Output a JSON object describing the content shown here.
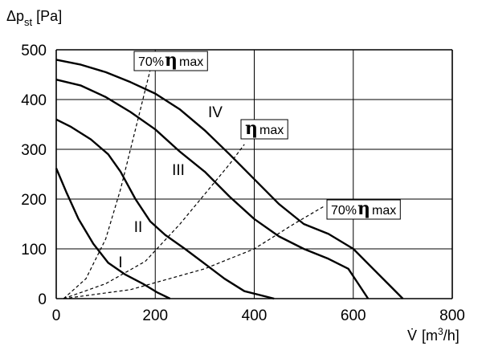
{
  "chart_data": {
    "type": "line",
    "title": "",
    "ylabel_prefix": "Δp",
    "ylabel_sub": "st",
    "ylabel_unit": "[Pa]",
    "xlabel_sym": "V̇",
    "xlabel_unit_pre": "[m",
    "xlabel_unit_sup": "3",
    "xlabel_unit_post": "/h]",
    "xlim": [
      0,
      800
    ],
    "ylim": [
      0,
      500
    ],
    "x_ticks": [
      0,
      200,
      400,
      600,
      800
    ],
    "y_ticks": [
      0,
      100,
      200,
      300,
      400,
      500
    ],
    "grid": true,
    "series": [
      {
        "name": "I",
        "points": [
          [
            0,
            262
          ],
          [
            20,
            215
          ],
          [
            45,
            160
          ],
          [
            75,
            110
          ],
          [
            105,
            72
          ],
          [
            140,
            48
          ],
          [
            175,
            30
          ],
          [
            205,
            12
          ],
          [
            230,
            0
          ]
        ]
      },
      {
        "name": "II",
        "points": [
          [
            0,
            360
          ],
          [
            30,
            345
          ],
          [
            70,
            320
          ],
          [
            105,
            290
          ],
          [
            130,
            255
          ],
          [
            160,
            200
          ],
          [
            190,
            155
          ],
          [
            220,
            128
          ],
          [
            260,
            100
          ],
          [
            300,
            70
          ],
          [
            340,
            40
          ],
          [
            380,
            15
          ],
          [
            440,
            0
          ]
        ]
      },
      {
        "name": "III",
        "points": [
          [
            0,
            440
          ],
          [
            50,
            428
          ],
          [
            100,
            405
          ],
          [
            150,
            375
          ],
          [
            200,
            340
          ],
          [
            250,
            295
          ],
          [
            300,
            255
          ],
          [
            350,
            205
          ],
          [
            400,
            160
          ],
          [
            450,
            125
          ],
          [
            500,
            100
          ],
          [
            550,
            80
          ],
          [
            590,
            60
          ],
          [
            610,
            30
          ],
          [
            630,
            0
          ]
        ]
      },
      {
        "name": "IV",
        "points": [
          [
            0,
            480
          ],
          [
            50,
            470
          ],
          [
            100,
            455
          ],
          [
            150,
            435
          ],
          [
            200,
            412
          ],
          [
            250,
            380
          ],
          [
            300,
            338
          ],
          [
            350,
            290
          ],
          [
            400,
            240
          ],
          [
            450,
            190
          ],
          [
            500,
            150
          ],
          [
            550,
            130
          ],
          [
            600,
            100
          ],
          [
            640,
            60
          ],
          [
            670,
            30
          ],
          [
            700,
            0
          ]
        ]
      }
    ],
    "efficiency_lines": [
      {
        "label_sym": "η",
        "label_text": "max",
        "label_prefix": "70%",
        "points": [
          [
            15,
            0
          ],
          [
            60,
            40
          ],
          [
            100,
            120
          ],
          [
            130,
            220
          ],
          [
            160,
            340
          ],
          [
            180,
            420
          ],
          [
            195,
            480
          ]
        ]
      },
      {
        "label_sym": "η",
        "label_text": "max",
        "label_prefix": "",
        "points": [
          [
            15,
            0
          ],
          [
            100,
            30
          ],
          [
            180,
            75
          ],
          [
            250,
            150
          ],
          [
            300,
            210
          ],
          [
            350,
            270
          ],
          [
            380,
            310
          ]
        ]
      },
      {
        "label_sym": "η",
        "label_text": "max",
        "label_prefix": "70%",
        "points": [
          [
            15,
            0
          ],
          [
            150,
            18
          ],
          [
            300,
            60
          ],
          [
            400,
            100
          ],
          [
            480,
            150
          ],
          [
            540,
            185
          ]
        ]
      }
    ],
    "curve_labels": [
      "I",
      "II",
      "III",
      "IV"
    ]
  }
}
